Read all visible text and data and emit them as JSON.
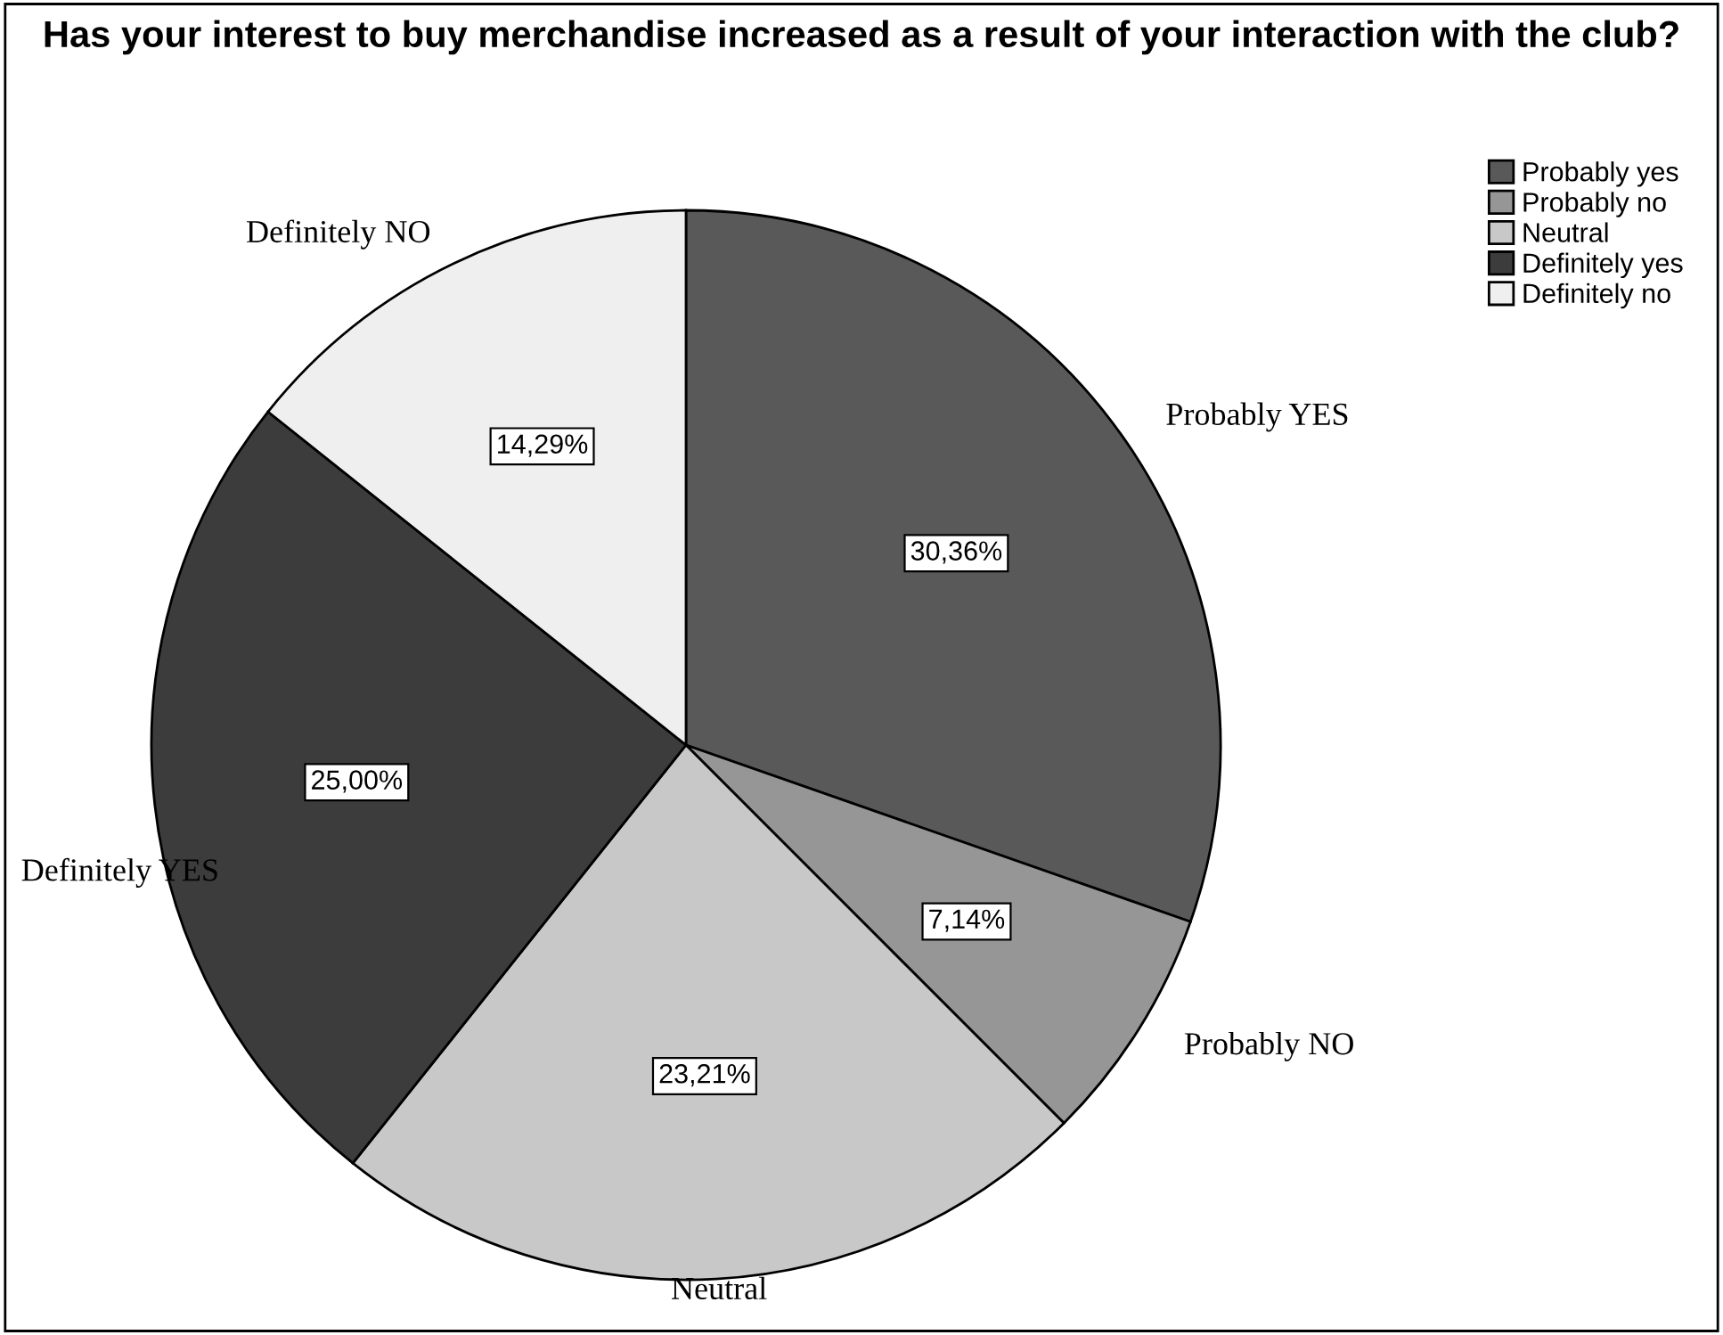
{
  "chart_data": {
    "type": "pie",
    "title": "Has your interest to buy merchandise increased as a result of your interaction with the club?",
    "categories": [
      "Probably yes",
      "Probably no",
      "Neutral",
      "Definitely yes",
      "Definitely no"
    ],
    "values": [
      30.36,
      7.14,
      23.21,
      25.0,
      14.29
    ],
    "value_labels": [
      "30,36%",
      "7,14%",
      "23,21%",
      "25,00%",
      "14,29%"
    ],
    "colors": [
      "#595959",
      "#969696",
      "#c8c8c8",
      "#3c3c3c",
      "#efefef"
    ],
    "annotations": [
      "Probably YES",
      "Probably NO",
      "Neutral",
      "Definitely YES",
      "Definitely NO"
    ],
    "legend": "top right"
  }
}
